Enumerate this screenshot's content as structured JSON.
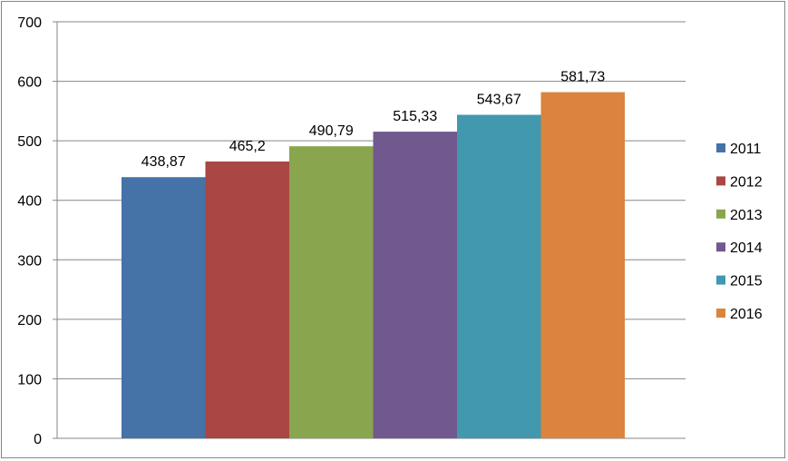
{
  "chart_data": {
    "type": "bar",
    "title": "",
    "xlabel": "",
    "ylabel": "",
    "ylim": [
      0,
      700
    ],
    "yticks": [
      0,
      100,
      200,
      300,
      400,
      500,
      600,
      700
    ],
    "grid": true,
    "legend_position": "right",
    "series": [
      {
        "name": "2011",
        "value": 438.87,
        "label": "438,87",
        "color": "#4572A7"
      },
      {
        "name": "2012",
        "value": 465.2,
        "label": "465,2",
        "color": "#AA4643"
      },
      {
        "name": "2013",
        "value": 490.79,
        "label": "490,79",
        "color": "#89A54E"
      },
      {
        "name": "2014",
        "value": 515.33,
        "label": "515,33",
        "color": "#71588F"
      },
      {
        "name": "2015",
        "value": 543.67,
        "label": "543,67",
        "color": "#4198AF"
      },
      {
        "name": "2016",
        "value": 581.73,
        "label": "581,73",
        "color": "#DB843D"
      }
    ]
  }
}
